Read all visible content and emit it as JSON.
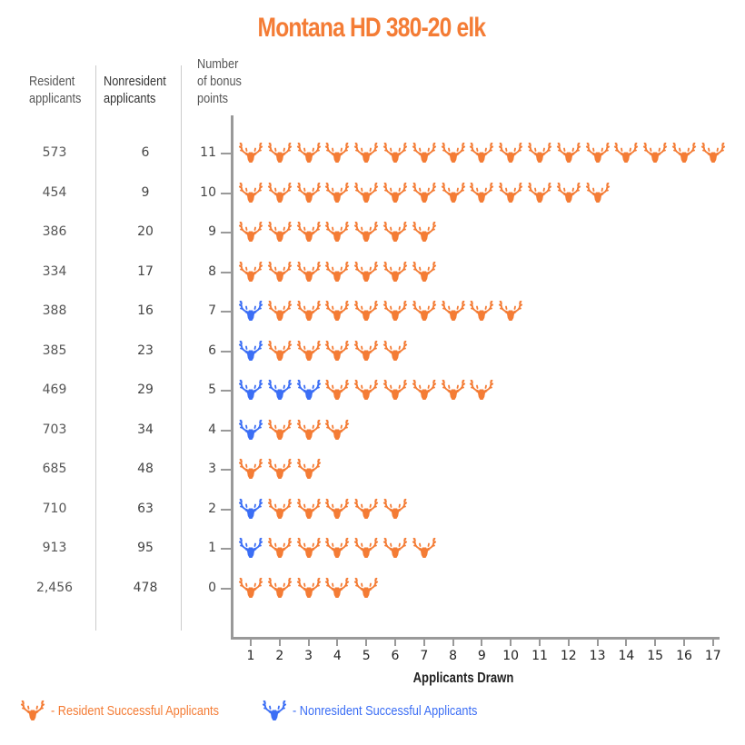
{
  "chart_data": {
    "type": "pictograph",
    "title": "Montana HD 380-20 elk",
    "xlabel": "Applicants Drawn",
    "ylabel": "Number of bonus points",
    "x_ticks": [
      "1",
      "2",
      "3",
      "4",
      "5",
      "6",
      "7",
      "8",
      "9",
      "10",
      "11",
      "12",
      "13",
      "14",
      "15",
      "16",
      "17"
    ],
    "xlim": [
      1,
      17
    ],
    "table_headers": {
      "resident": "Resident applicants",
      "nonresident": "Nonresident applicants",
      "points": "Number of bonus points"
    },
    "rows": [
      {
        "points": "11",
        "resident_applicants": "573",
        "nonresident_applicants": "6",
        "nonresident_drawn": 0,
        "resident_drawn": 17
      },
      {
        "points": "10",
        "resident_applicants": "454",
        "nonresident_applicants": "9",
        "nonresident_drawn": 0,
        "resident_drawn": 13
      },
      {
        "points": "9",
        "resident_applicants": "386",
        "nonresident_applicants": "20",
        "nonresident_drawn": 0,
        "resident_drawn": 7
      },
      {
        "points": "8",
        "resident_applicants": "334",
        "nonresident_applicants": "17",
        "nonresident_drawn": 0,
        "resident_drawn": 7
      },
      {
        "points": "7",
        "resident_applicants": "388",
        "nonresident_applicants": "16",
        "nonresident_drawn": 1,
        "resident_drawn": 9
      },
      {
        "points": "6",
        "resident_applicants": "385",
        "nonresident_applicants": "23",
        "nonresident_drawn": 1,
        "resident_drawn": 5
      },
      {
        "points": "5",
        "resident_applicants": "469",
        "nonresident_applicants": "29",
        "nonresident_drawn": 3,
        "resident_drawn": 6
      },
      {
        "points": "4",
        "resident_applicants": "703",
        "nonresident_applicants": "34",
        "nonresident_drawn": 1,
        "resident_drawn": 3
      },
      {
        "points": "3",
        "resident_applicants": "685",
        "nonresident_applicants": "48",
        "nonresident_drawn": 0,
        "resident_drawn": 3
      },
      {
        "points": "2",
        "resident_applicants": "710",
        "nonresident_applicants": "63",
        "nonresident_drawn": 1,
        "resident_drawn": 5
      },
      {
        "points": "1",
        "resident_applicants": "913",
        "nonresident_applicants": "95",
        "nonresident_drawn": 1,
        "resident_drawn": 6
      },
      {
        "points": "0",
        "resident_applicants": "2,456",
        "nonresident_applicants": "478",
        "nonresident_drawn": 0,
        "resident_drawn": 5
      }
    ],
    "series": [
      {
        "name": "Nonresident Successful Applicants",
        "color": "#3b6ef5",
        "values": [
          0,
          0,
          0,
          0,
          1,
          1,
          3,
          1,
          0,
          1,
          1,
          0
        ]
      },
      {
        "name": "Resident Successful Applicants",
        "color": "#f47c35",
        "values": [
          17,
          13,
          7,
          7,
          9,
          5,
          6,
          3,
          3,
          5,
          6,
          5
        ]
      }
    ],
    "categories": [
      "11",
      "10",
      "9",
      "8",
      "7",
      "6",
      "5",
      "4",
      "3",
      "2",
      "1",
      "0"
    ],
    "legend": [
      {
        "label": "- Resident Successful Applicants",
        "color": "#f47c35",
        "icon": "elk-head-icon"
      },
      {
        "label": "- Nonresident Successful Applicants",
        "color": "#3b6ef5",
        "icon": "elk-head-icon"
      }
    ],
    "legend_position": "bottom-left",
    "grid": false
  },
  "colors": {
    "resident": "#f47c35",
    "nonresident": "#3b6ef5",
    "title": "#f47c35",
    "axis": "#999999"
  },
  "header": {
    "title": "Montana HD 380-20 elk",
    "resident_col": [
      "Resident",
      "applicants"
    ],
    "nonresident_col": [
      "Nonresident",
      "applicants"
    ],
    "points_col": [
      "Number",
      "of bonus",
      "points"
    ]
  },
  "axis": {
    "x_title": "Applicants Drawn"
  },
  "legend": {
    "resident_label": "- Resident Successful Applicants",
    "nonresident_label": "- Nonresident Successful Applicants"
  }
}
